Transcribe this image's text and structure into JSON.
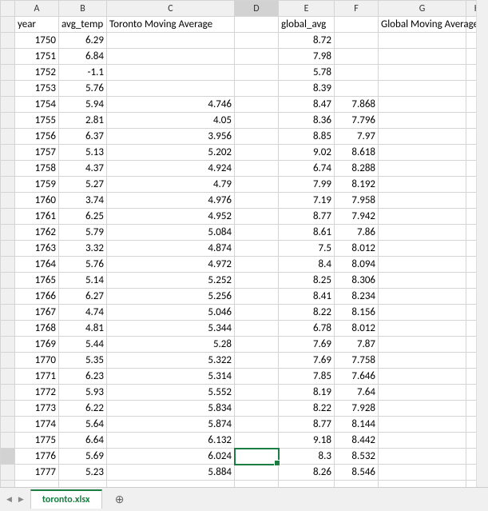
{
  "columns": [
    "A",
    "B",
    "C",
    "D",
    "E",
    "F",
    "G",
    "H"
  ],
  "header_row": {
    "A": "year",
    "B": "avg_temp",
    "C": "Toronto Moving Average",
    "D": "",
    "E": "global_avg",
    "F": "",
    "G": "Global Moving Average",
    "H": ""
  },
  "rows": [
    {
      "A": "1750",
      "B": "6.29",
      "C": "",
      "D": "",
      "E": "8.72",
      "F": "",
      "G": "",
      "H": ""
    },
    {
      "A": "1751",
      "B": "6.84",
      "C": "",
      "D": "",
      "E": "7.98",
      "F": "",
      "G": "",
      "H": ""
    },
    {
      "A": "1752",
      "B": "-1.1",
      "C": "",
      "D": "",
      "E": "5.78",
      "F": "",
      "G": "",
      "H": ""
    },
    {
      "A": "1753",
      "B": "5.76",
      "C": "",
      "D": "",
      "E": "8.39",
      "F": "",
      "G": "",
      "H": ""
    },
    {
      "A": "1754",
      "B": "5.94",
      "C": "4.746",
      "D": "",
      "E": "8.47",
      "F": "7.868",
      "G": "",
      "H": ""
    },
    {
      "A": "1755",
      "B": "2.81",
      "C": "4.05",
      "D": "",
      "E": "8.36",
      "F": "7.796",
      "G": "",
      "H": ""
    },
    {
      "A": "1756",
      "B": "6.37",
      "C": "3.956",
      "D": "",
      "E": "8.85",
      "F": "7.97",
      "G": "",
      "H": ""
    },
    {
      "A": "1757",
      "B": "5.13",
      "C": "5.202",
      "D": "",
      "E": "9.02",
      "F": "8.618",
      "G": "",
      "H": ""
    },
    {
      "A": "1758",
      "B": "4.37",
      "C": "4.924",
      "D": "",
      "E": "6.74",
      "F": "8.288",
      "G": "",
      "H": ""
    },
    {
      "A": "1759",
      "B": "5.27",
      "C": "4.79",
      "D": "",
      "E": "7.99",
      "F": "8.192",
      "G": "",
      "H": ""
    },
    {
      "A": "1760",
      "B": "3.74",
      "C": "4.976",
      "D": "",
      "E": "7.19",
      "F": "7.958",
      "G": "",
      "H": ""
    },
    {
      "A": "1761",
      "B": "6.25",
      "C": "4.952",
      "D": "",
      "E": "8.77",
      "F": "7.942",
      "G": "",
      "H": ""
    },
    {
      "A": "1762",
      "B": "5.79",
      "C": "5.084",
      "D": "",
      "E": "8.61",
      "F": "7.86",
      "G": "",
      "H": ""
    },
    {
      "A": "1763",
      "B": "3.32",
      "C": "4.874",
      "D": "",
      "E": "7.5",
      "F": "8.012",
      "G": "",
      "H": ""
    },
    {
      "A": "1764",
      "B": "5.76",
      "C": "4.972",
      "D": "",
      "E": "8.4",
      "F": "8.094",
      "G": "",
      "H": ""
    },
    {
      "A": "1765",
      "B": "5.14",
      "C": "5.252",
      "D": "",
      "E": "8.25",
      "F": "8.306",
      "G": "",
      "H": ""
    },
    {
      "A": "1766",
      "B": "6.27",
      "C": "5.256",
      "D": "",
      "E": "8.41",
      "F": "8.234",
      "G": "",
      "H": ""
    },
    {
      "A": "1767",
      "B": "4.74",
      "C": "5.046",
      "D": "",
      "E": "8.22",
      "F": "8.156",
      "G": "",
      "H": ""
    },
    {
      "A": "1768",
      "B": "4.81",
      "C": "5.344",
      "D": "",
      "E": "6.78",
      "F": "8.012",
      "G": "",
      "H": ""
    },
    {
      "A": "1769",
      "B": "5.44",
      "C": "5.28",
      "D": "",
      "E": "7.69",
      "F": "7.87",
      "G": "",
      "H": ""
    },
    {
      "A": "1770",
      "B": "5.35",
      "C": "5.322",
      "D": "",
      "E": "7.69",
      "F": "7.758",
      "G": "",
      "H": ""
    },
    {
      "A": "1771",
      "B": "6.23",
      "C": "5.314",
      "D": "",
      "E": "7.85",
      "F": "7.646",
      "G": "",
      "H": ""
    },
    {
      "A": "1772",
      "B": "5.93",
      "C": "5.552",
      "D": "",
      "E": "8.19",
      "F": "7.64",
      "G": "",
      "H": ""
    },
    {
      "A": "1773",
      "B": "6.22",
      "C": "5.834",
      "D": "",
      "E": "8.22",
      "F": "7.928",
      "G": "",
      "H": ""
    },
    {
      "A": "1774",
      "B": "5.64",
      "C": "5.874",
      "D": "",
      "E": "8.77",
      "F": "8.144",
      "G": "",
      "H": ""
    },
    {
      "A": "1775",
      "B": "6.64",
      "C": "6.132",
      "D": "",
      "E": "9.18",
      "F": "8.442",
      "G": "",
      "H": ""
    },
    {
      "A": "1776",
      "B": "5.69",
      "C": "6.024",
      "D": "",
      "E": "8.3",
      "F": "8.532",
      "G": "",
      "H": ""
    },
    {
      "A": "1777",
      "B": "5.23",
      "C": "5.884",
      "D": "",
      "E": "8.26",
      "F": "8.546",
      "G": "",
      "H": ""
    }
  ],
  "selected_cell": {
    "col": "D",
    "row_index": 26
  },
  "sheet_tab": "toronto.xlsx",
  "colors": {
    "grid_border": "#d4d4d4",
    "header_bg": "#f0f0f0",
    "selection": "#1a7e43",
    "background": "#ffffff"
  }
}
